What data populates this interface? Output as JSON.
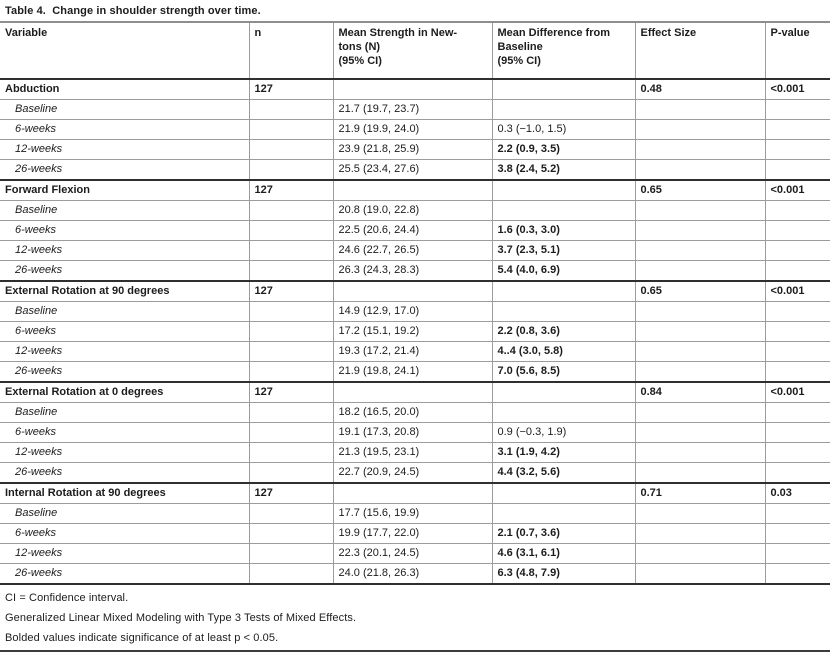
{
  "title": "Table 4.  Change in shoulder strength over time.",
  "columns": [
    "Variable",
    "n",
    "Mean Strength in New-\ntons (N)\n(95% CI)",
    "Mean Difference from\nBaseline\n(95% CI)",
    "Effect Size",
    "P-value"
  ],
  "sections": [
    {
      "name": "Abduction",
      "n": "127",
      "effect_size": "0.48",
      "p_value": "<0.001",
      "rows": [
        {
          "label": "Baseline",
          "mean": "21.7 (19.7, 23.7)",
          "diff": "",
          "diff_bold": false
        },
        {
          "label": "6-weeks",
          "mean": "21.9 (19.9, 24.0)",
          "diff": "0.3 (−1.0, 1.5)",
          "diff_bold": false
        },
        {
          "label": "12-weeks",
          "mean": "23.9 (21.8, 25.9)",
          "diff": "2.2 (0.9, 3.5)",
          "diff_bold": true
        },
        {
          "label": "26-weeks",
          "mean": "25.5 (23.4, 27.6)",
          "diff": "3.8 (2.4, 5.2)",
          "diff_bold": true
        }
      ]
    },
    {
      "name": "Forward Flexion",
      "n": "127",
      "effect_size": "0.65",
      "p_value": "<0.001",
      "rows": [
        {
          "label": "Baseline",
          "mean": "20.8 (19.0, 22.8)",
          "diff": "",
          "diff_bold": false
        },
        {
          "label": "6-weeks",
          "mean": "22.5 (20.6, 24.4)",
          "diff": "1.6 (0.3, 3.0)",
          "diff_bold": true
        },
        {
          "label": "12-weeks",
          "mean": "24.6 (22.7, 26.5)",
          "diff": "3.7 (2.3, 5.1)",
          "diff_bold": true
        },
        {
          "label": "26-weeks",
          "mean": "26.3 (24.3, 28.3)",
          "diff": "5.4 (4.0, 6.9)",
          "diff_bold": true
        }
      ]
    },
    {
      "name": "External Rotation at 90 degrees",
      "n": "127",
      "effect_size": "0.65",
      "p_value": "<0.001",
      "rows": [
        {
          "label": "Baseline",
          "mean": "14.9 (12.9, 17.0)",
          "diff": "",
          "diff_bold": false
        },
        {
          "label": "6-weeks",
          "mean": "17.2 (15.1, 19.2)",
          "diff": "2.2 (0.8, 3.6)",
          "diff_bold": true
        },
        {
          "label": "12-weeks",
          "mean": "19.3 (17.2, 21.4)",
          "diff": "4..4 (3.0, 5.8)",
          "diff_bold": true
        },
        {
          "label": "26-weeks",
          "mean": "21.9 (19.8, 24.1)",
          "diff": "7.0 (5.6, 8.5)",
          "diff_bold": true
        }
      ]
    },
    {
      "name": "External Rotation at 0 degrees",
      "n": "127",
      "effect_size": "0.84",
      "p_value": "<0.001",
      "rows": [
        {
          "label": "Baseline",
          "mean": "18.2 (16.5, 20.0)",
          "diff": "",
          "diff_bold": false
        },
        {
          "label": "6-weeks",
          "mean": "19.1 (17.3, 20.8)",
          "diff": "0.9 (−0.3, 1.9)",
          "diff_bold": false
        },
        {
          "label": "12-weeks",
          "mean": "21.3 (19.5, 23.1)",
          "diff": "3.1 (1.9, 4.2)",
          "diff_bold": true
        },
        {
          "label": "26-weeks",
          "mean": "22.7 (20.9, 24.5)",
          "diff": "4.4 (3.2, 5.6)",
          "diff_bold": true
        }
      ]
    },
    {
      "name": "Internal Rotation at 90 degrees",
      "n": "127",
      "effect_size": "0.71",
      "p_value": "0.03",
      "rows": [
        {
          "label": "Baseline",
          "mean": "17.7 (15.6, 19.9)",
          "diff": "",
          "diff_bold": false
        },
        {
          "label": "6-weeks",
          "mean": "19.9 (17.7, 22.0)",
          "diff": "2.1 (0.7, 3.6)",
          "diff_bold": true
        },
        {
          "label": "12-weeks",
          "mean": "22.3 (20.1, 24.5)",
          "diff": "4.6 (3.1, 6.1)",
          "diff_bold": true
        },
        {
          "label": "26-weeks",
          "mean": "24.0 (21.8, 26.3)",
          "diff": "6.3 (4.8, 7.9)",
          "diff_bold": true
        }
      ]
    }
  ],
  "footnotes": [
    "CI = Confidence interval.",
    "Generalized Linear Mixed Modeling with Type 3 Tests of Mixed Effects.",
    "Bolded values indicate significance of at least p < 0.05."
  ]
}
